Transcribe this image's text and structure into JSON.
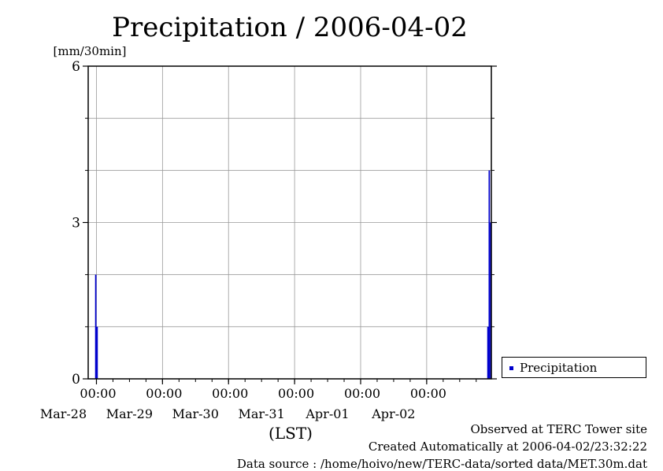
{
  "chart_data": {
    "type": "bar",
    "title": "Precipitation / 2006-04-02",
    "ylabel": "[mm/30min]",
    "xlabel": "(LST)",
    "ylim": [
      0,
      6
    ],
    "yticks": [
      "0",
      "3",
      "6"
    ],
    "x_range": [
      "2006-03-27 21:00",
      "2006-04-02 23:30"
    ],
    "x_ticks": [
      {
        "time": "00:00",
        "date": "Mar-28"
      },
      {
        "time": "00:00",
        "date": "Mar-29"
      },
      {
        "time": "00:00",
        "date": "Mar-30"
      },
      {
        "time": "00:00",
        "date": "Mar-31"
      },
      {
        "time": "00:00",
        "date": "Apr-01"
      },
      {
        "time": "00:00",
        "date": "Apr-02"
      }
    ],
    "grid": true,
    "legend_position": "bottom-right",
    "series": [
      {
        "name": "Precipitation",
        "color": "#0000cc",
        "points": [
          {
            "x": "2006-03-27 23:30",
            "y": 2
          },
          {
            "x": "2006-03-28 00:00",
            "y": 1
          },
          {
            "x": "2006-04-02 22:00",
            "y": 1
          },
          {
            "x": "2006-04-02 22:30",
            "y": 4
          },
          {
            "x": "2006-04-02 23:00",
            "y": 3
          }
        ]
      }
    ]
  },
  "footer": {
    "observed": "Observed at TERC Tower site",
    "created": "Created Automatically at 2006-04-02/23:32:22",
    "source": "Data source : /home/hoivo/new/TERC-data/sorted  data/MET.30m.dat"
  }
}
